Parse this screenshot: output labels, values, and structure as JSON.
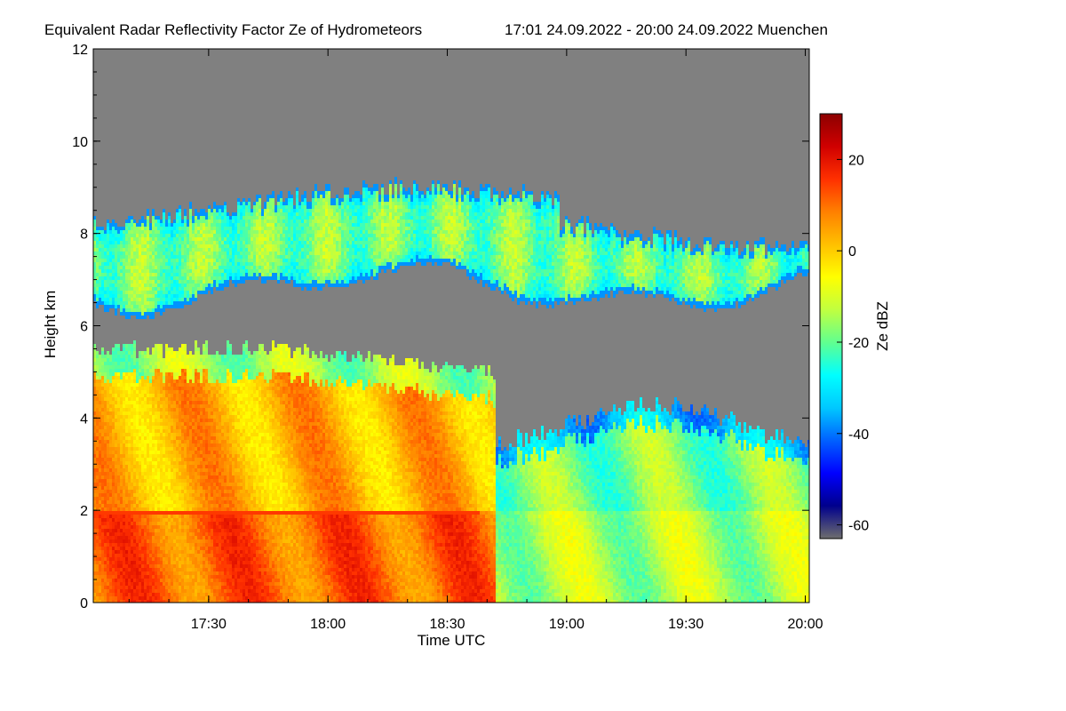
{
  "chart_data": {
    "type": "heatmap",
    "title": "Equivalent Radar Reflectivity Factor Ze of Hydrometeors",
    "subtitle": "17:01 24.09.2022 - 20:00 24.09.2022 Muenchen",
    "xlabel": "Time UTC",
    "ylabel": "Height km",
    "colorbar_label": "Ze dBZ",
    "xlim": [
      "17:01",
      "20:01"
    ],
    "ylim": [
      0,
      12
    ],
    "x_ticks": [
      "17:30",
      "18:00",
      "18:30",
      "19:00",
      "19:30",
      "20:00"
    ],
    "y_ticks": [
      0,
      2,
      4,
      6,
      8,
      10,
      12
    ],
    "colorbar_range": [
      -63,
      30
    ],
    "colorbar_ticks": [
      20,
      0,
      -20,
      -40,
      -60
    ],
    "no_signal_color": "#808080",
    "colormap": [
      "#6e6e6e",
      "#00008c",
      "#0000ff",
      "#0060ff",
      "#00c8ff",
      "#00ffff",
      "#60ff90",
      "#c0ff40",
      "#ffff00",
      "#ffc000",
      "#ff8000",
      "#ff3000",
      "#d00000",
      "#8c0000"
    ],
    "features": [
      {
        "label": "upper cloud layer",
        "time_start": "17:01",
        "time_end": "20:01",
        "base_km": 6.8,
        "top_km": 8.6,
        "typical_dBZ": -12
      },
      {
        "label": "lower precipitating cloud",
        "time_start": "17:01",
        "time_end": "18:42",
        "base_km": 0,
        "top_km": 5.5,
        "typical_dBZ": 5
      },
      {
        "label": "lower cloud",
        "time_start": "18:42",
        "time_end": "20:01",
        "base_km": 0,
        "top_km": 3.9,
        "typical_dBZ": -18
      },
      {
        "label": "melting layer",
        "time_start": "17:01",
        "time_end": "18:38",
        "height_km": 1.95,
        "typical_dBZ": 15
      }
    ]
  }
}
